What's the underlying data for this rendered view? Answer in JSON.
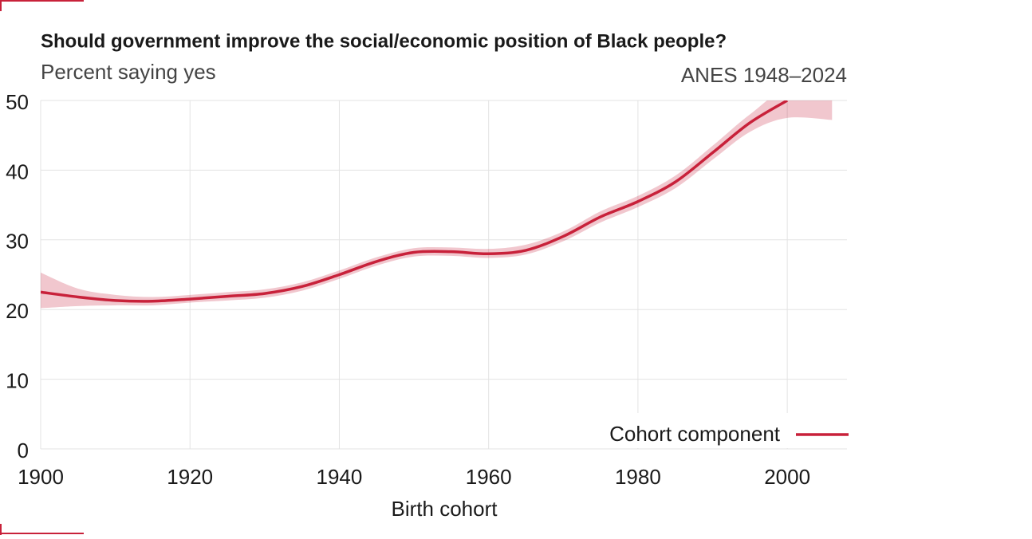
{
  "chart_data": {
    "type": "line",
    "title": "Should government improve the social/economic position of Black people?",
    "subtitle": "Percent saying yes",
    "source": "ANES 1948–2024",
    "xlabel": "Birth cohort",
    "x": [
      1900,
      1905,
      1910,
      1915,
      1920,
      1925,
      1930,
      1935,
      1940,
      1945,
      1950,
      1955,
      1960,
      1965,
      1970,
      1975,
      1980,
      1985,
      1990,
      1995,
      2000,
      2006
    ],
    "series": [
      {
        "name": "Cohort component",
        "color": "#c8213a",
        "values": [
          22.5,
          21.8,
          21.3,
          21.2,
          21.5,
          21.9,
          22.3,
          23.3,
          25.0,
          26.9,
          28.2,
          28.3,
          28.0,
          28.5,
          30.5,
          33.3,
          35.5,
          38.3,
          42.5,
          46.8,
          50.0,
          null
        ],
        "lower": [
          20.2,
          20.5,
          20.6,
          20.6,
          21.0,
          21.3,
          21.7,
          22.7,
          24.4,
          26.3,
          27.6,
          27.7,
          27.4,
          27.9,
          29.8,
          32.5,
          34.7,
          37.4,
          41.5,
          45.5,
          47.5,
          47.2
        ],
        "upper": [
          25.3,
          23.0,
          22.1,
          21.8,
          22.1,
          22.5,
          22.9,
          23.9,
          25.6,
          27.5,
          28.8,
          28.9,
          28.7,
          29.3,
          31.2,
          34.1,
          36.3,
          39.2,
          43.5,
          48.0,
          51.5,
          50.0
        ]
      }
    ],
    "xlim": [
      1900,
      2008
    ],
    "ylim": [
      0,
      50
    ],
    "xticks": [
      1900,
      1920,
      1940,
      1960,
      1980,
      2000
    ],
    "yticks": [
      0,
      10,
      20,
      30,
      40,
      50
    ],
    "grid": true
  }
}
